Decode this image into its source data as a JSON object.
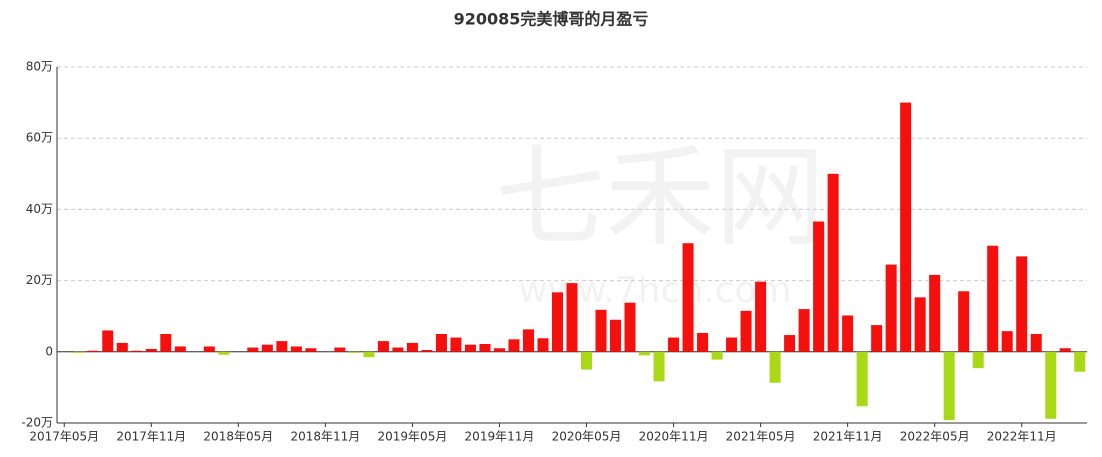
{
  "chart_data": {
    "type": "bar",
    "title": "920085完美博哥的月盈亏",
    "watermark": [
      "七禾网",
      "www.7hcn.com"
    ],
    "categories": [
      "2017年05月",
      null,
      null,
      null,
      null,
      null,
      "2017年11月",
      null,
      null,
      null,
      null,
      null,
      "2018年05月",
      null,
      null,
      null,
      null,
      null,
      "2018年11月",
      null,
      null,
      null,
      null,
      null,
      "2019年05月",
      null,
      null,
      null,
      null,
      null,
      "2019年11月",
      null,
      null,
      null,
      null,
      null,
      "2020年05月",
      null,
      null,
      null,
      null,
      null,
      "2020年11月",
      null,
      null,
      null,
      null,
      null,
      "2021年05月",
      null,
      null,
      null,
      null,
      null,
      "2021年11月",
      null,
      null,
      null,
      null,
      null,
      "2022年05月",
      null,
      null,
      null,
      null,
      null,
      "2022年11月",
      null,
      null,
      null,
      null
    ],
    "values": [
      0,
      -0.3,
      0.3,
      6,
      2.5,
      0.3,
      0.8,
      5,
      1.5,
      0,
      1.5,
      -0.8,
      0,
      1.2,
      2,
      3,
      1.5,
      1,
      0,
      1.2,
      -0.3,
      -1.5,
      3,
      1.2,
      2.5,
      0.5,
      5,
      4,
      2,
      2.2,
      1,
      3.5,
      6.3,
      3.8,
      16.7,
      19.3,
      -5,
      11.8,
      9,
      13.8,
      -1,
      -8.3,
      4,
      30.5,
      5.3,
      -2.2,
      4,
      11.5,
      19.7,
      -8.7,
      4.7,
      12,
      36.6,
      50,
      10.2,
      -15.3,
      7.5,
      24.5,
      70,
      15.3,
      21.6,
      -19.2,
      17,
      -4.6,
      29.8,
      5.8,
      26.8,
      5,
      -18.8,
      1,
      -5.6
    ],
    "positive_color": "#f5100e",
    "negative_color": "#a9d916",
    "ylim": [
      -20,
      80
    ],
    "yticks": [
      {
        "value": -20,
        "label": "-20万"
      },
      0,
      {
        "value": 20,
        "label": "20万"
      },
      {
        "value": 40,
        "label": "40万"
      },
      {
        "value": 60,
        "label": "60万"
      },
      {
        "value": 80,
        "label": "80万"
      }
    ],
    "grid": true
  }
}
